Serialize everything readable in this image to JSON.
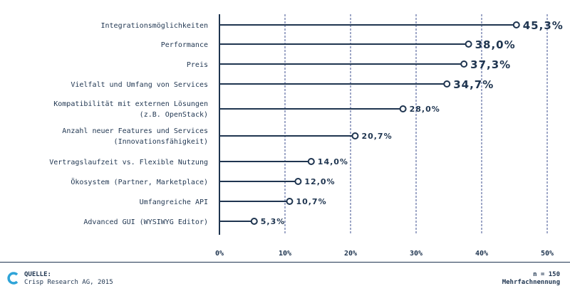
{
  "chart_data": {
    "type": "bar",
    "orientation": "horizontal",
    "categories": [
      [
        "Integrationsmöglichkeiten"
      ],
      [
        "Performance"
      ],
      [
        "Preis"
      ],
      [
        "Vielfalt und Umfang von Services"
      ],
      [
        "Kompatibilität mit externen Lösungen",
        "(z.B. OpenStack)"
      ],
      [
        "Anzahl neuer Features und Services",
        "(Innovationsfähigkeit)"
      ],
      [
        "Vertragslaufzeit vs. Flexible Nutzung"
      ],
      [
        "Ökosystem (Partner, Marketplace)"
      ],
      [
        "Umfangreiche API"
      ],
      [
        "Advanced GUI (WYSIWYG Editor)"
      ]
    ],
    "values": [
      45.3,
      38.0,
      37.3,
      34.7,
      28.0,
      20.7,
      14.0,
      12.0,
      10.7,
      5.3
    ],
    "value_labels": [
      "45,3%",
      "38,0%",
      "37,3%",
      "34,7%",
      "28,0%",
      "20,7%",
      "14,0%",
      "12,0%",
      "10,7%",
      "5,3%"
    ],
    "xlim": [
      0,
      50
    ],
    "xticks": [
      0,
      10,
      20,
      30,
      40,
      50
    ],
    "xtick_labels": [
      "0%",
      "10%",
      "20%",
      "30%",
      "40%",
      "50%"
    ],
    "grid": true,
    "marker": "lollipop",
    "color": "#1f3550",
    "grid_color": "#3d4f8f"
  },
  "footer": {
    "source_title": "QUELLE:",
    "source_text": "Crisp Research AG, 2015",
    "n_text": "n = 150",
    "note_text": "Mehrfachnennung"
  }
}
